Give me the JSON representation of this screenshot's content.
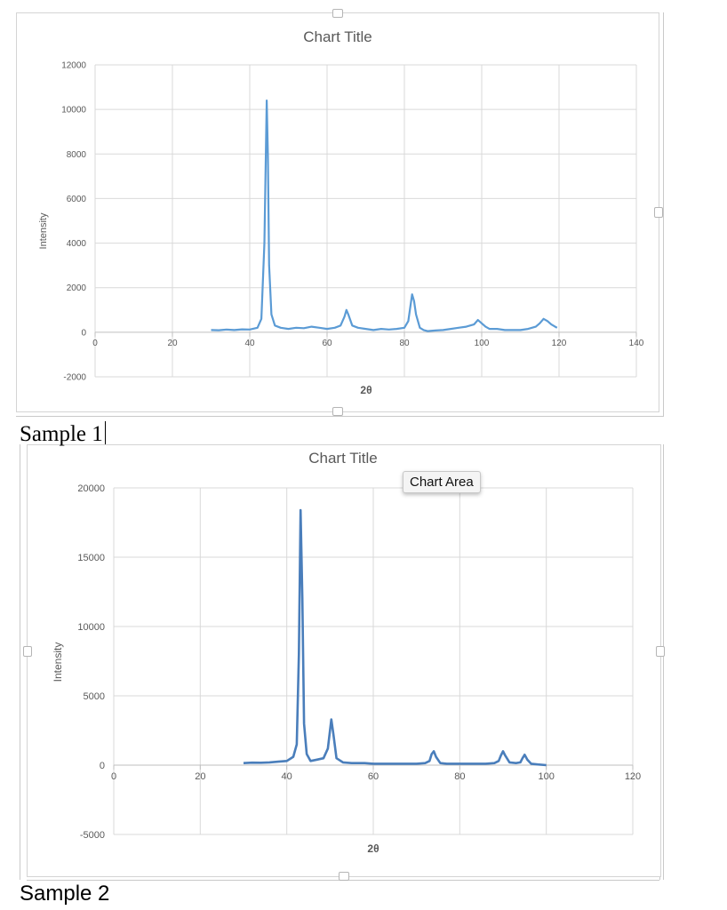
{
  "captions": {
    "sample_1": "Sample 1",
    "sample_2": "Sample 2"
  },
  "tooltip": {
    "label": "Chart Area"
  },
  "colors": {
    "series_1": "#5b9bd5",
    "series_2": "#4a7ebb",
    "grid": "#d9d9d9",
    "axis_text": "#595959"
  },
  "chart_data": [
    {
      "type": "line",
      "title": "Chart Title",
      "xlabel": "2θ",
      "ylabel": "Intensity",
      "xlim": [
        0,
        140
      ],
      "ylim": [
        -2000,
        12000
      ],
      "x_ticks": [
        0,
        20,
        40,
        60,
        80,
        100,
        120,
        140
      ],
      "y_ticks": [
        -2000,
        0,
        2000,
        4000,
        6000,
        8000,
        10000,
        12000
      ],
      "grid": true,
      "legend": "none",
      "series": [
        {
          "x": [
            30,
            32,
            34,
            36,
            38,
            40,
            42,
            43,
            43.8,
            44.4,
            44.7,
            45,
            45.6,
            46.5,
            48,
            50,
            52,
            54,
            56,
            58,
            60,
            62,
            63.5,
            64.5,
            65,
            65.5,
            66.5,
            68,
            70,
            72,
            74,
            76,
            78,
            80,
            81,
            82,
            82.5,
            83,
            84,
            85,
            86,
            88,
            90,
            92,
            94,
            96,
            98,
            99,
            100,
            101,
            102,
            104,
            106,
            108,
            110,
            112,
            114,
            115,
            116,
            117,
            118,
            119,
            119.5
          ],
          "y": [
            100,
            90,
            120,
            100,
            130,
            120,
            200,
            600,
            4000,
            10400,
            8000,
            3000,
            800,
            300,
            200,
            150,
            200,
            180,
            250,
            200,
            150,
            200,
            300,
            700,
            1000,
            800,
            300,
            200,
            150,
            100,
            150,
            120,
            150,
            200,
            500,
            1700,
            1400,
            800,
            200,
            100,
            50,
            80,
            100,
            150,
            200,
            250,
            350,
            550,
            400,
            250,
            150,
            150,
            100,
            100,
            100,
            150,
            250,
            400,
            600,
            500,
            350,
            250,
            200
          ]
        }
      ]
    },
    {
      "type": "line",
      "title": "Chart Title",
      "xlabel": "2θ",
      "ylabel": "Intensity",
      "xlim": [
        0,
        120
      ],
      "ylim": [
        -5000,
        20000
      ],
      "x_ticks": [
        0,
        20,
        40,
        60,
        80,
        100,
        120
      ],
      "y_ticks": [
        -5000,
        0,
        5000,
        10000,
        15000,
        20000
      ],
      "grid": true,
      "legend": "none",
      "series": [
        {
          "x": [
            30,
            32,
            34,
            36,
            38,
            40,
            41.5,
            42.3,
            42.8,
            43.2,
            43.6,
            44,
            44.6,
            45.5,
            47,
            48.5,
            49.5,
            50,
            50.3,
            50.8,
            51.5,
            53,
            55,
            58,
            60,
            62,
            65,
            68,
            70,
            72,
            73,
            73.5,
            74,
            74.5,
            75.5,
            77,
            80,
            83,
            86,
            88,
            89,
            89.5,
            90,
            90.5,
            91.5,
            93,
            94,
            94.5,
            95,
            95.6,
            96.5,
            98,
            100
          ],
          "y": [
            150,
            180,
            170,
            200,
            250,
            300,
            600,
            1500,
            8000,
            18400,
            12000,
            3000,
            800,
            300,
            400,
            500,
            1200,
            2500,
            3300,
            2200,
            500,
            200,
            150,
            150,
            100,
            100,
            100,
            100,
            100,
            150,
            300,
            800,
            1000,
            600,
            150,
            100,
            100,
            100,
            100,
            150,
            300,
            700,
            1000,
            700,
            200,
            150,
            200,
            500,
            750,
            400,
            100,
            50,
            0
          ]
        }
      ]
    }
  ]
}
